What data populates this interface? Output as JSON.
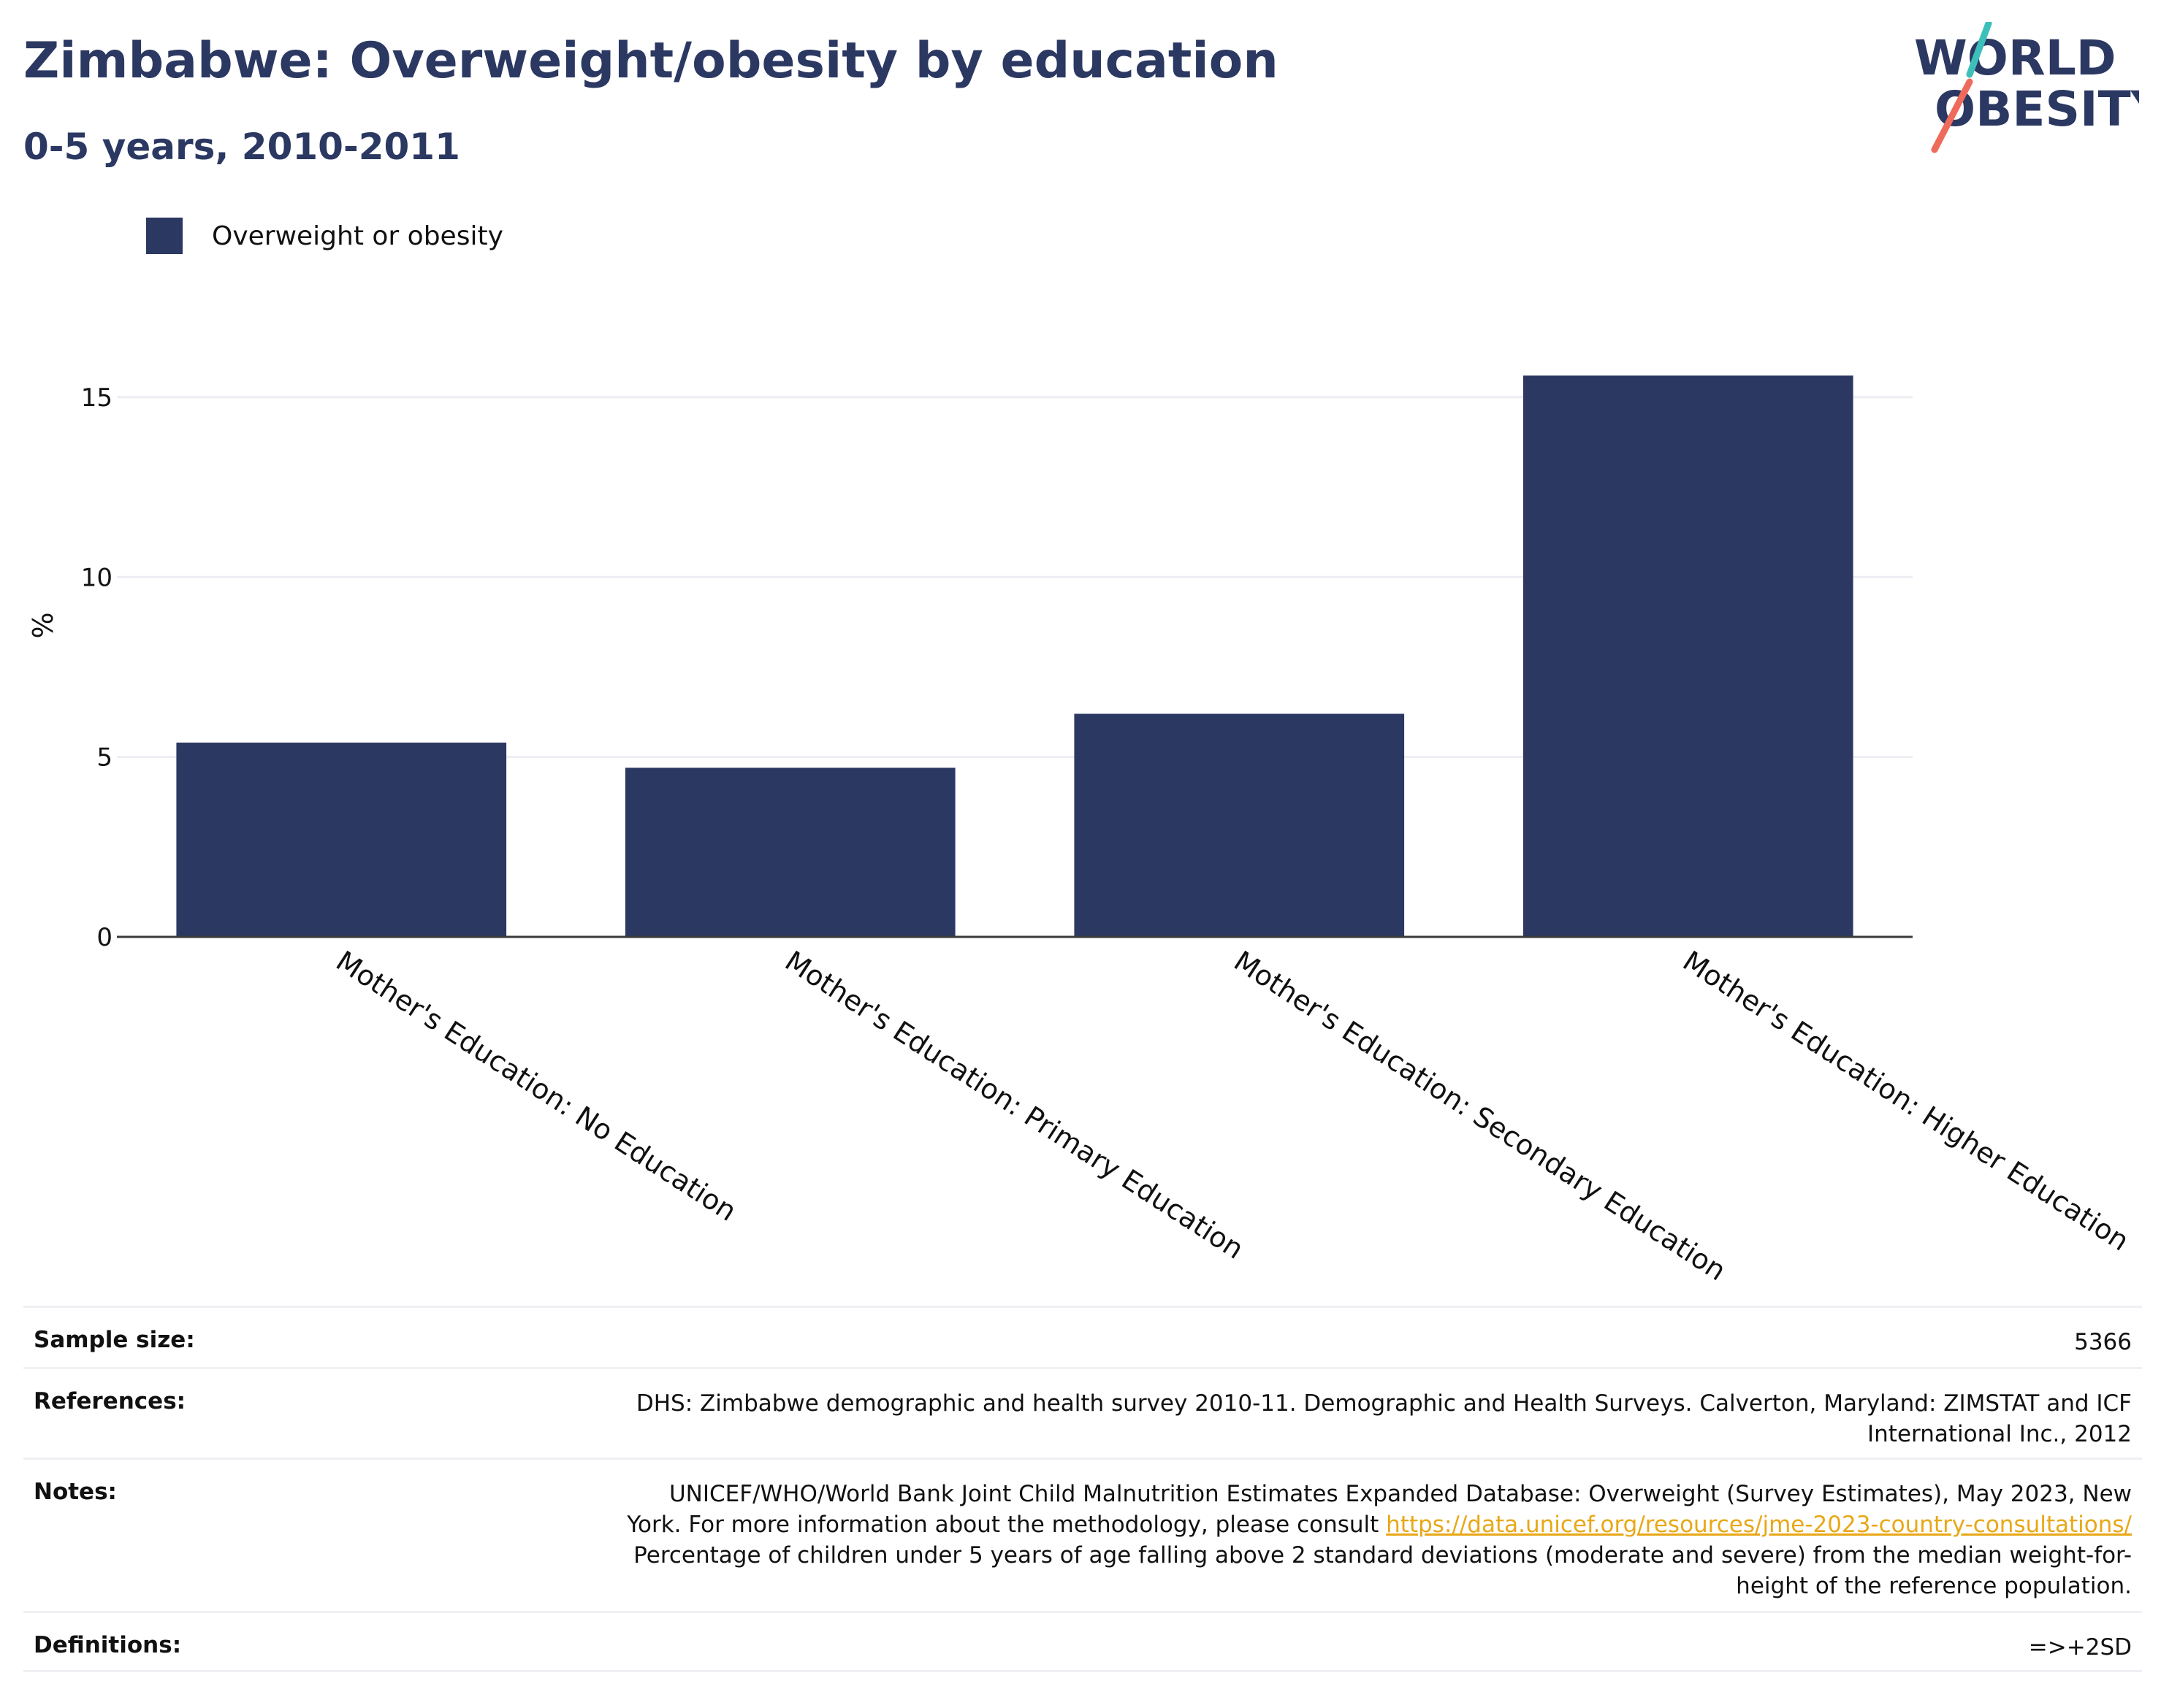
{
  "header": {
    "title": "Zimbabwe: Overweight/obesity by education",
    "subtitle": "0-5 years, 2010-2011"
  },
  "logo": {
    "line1": "WORLD",
    "line2": "OBESITY",
    "colors": {
      "text": "#2b3862",
      "slash_top": "#3cc0b9",
      "slash_bottom": "#ee6b5b"
    }
  },
  "legend": {
    "label": "Overweight or obesity"
  },
  "chart_data": {
    "type": "bar",
    "categories": [
      "Mother's Education: No Education",
      "Mother's Education: Primary Education",
      "Mother's Education: Secondary Education",
      "Mother's Education: Higher Education"
    ],
    "series": [
      {
        "name": "Overweight or obesity",
        "values": [
          5.4,
          4.7,
          6.2,
          15.6
        ],
        "color": "#2b3862"
      }
    ],
    "title": "",
    "xlabel": "",
    "ylabel": "%",
    "ylim": [
      0,
      16.5
    ],
    "yticks": [
      0,
      5,
      10,
      15
    ],
    "ytick_labels": [
      "0",
      "5",
      "10",
      "15"
    ],
    "grid": true,
    "legend_position": "top-left"
  },
  "meta": {
    "sample_size": {
      "label": "Sample size:",
      "value": "5366"
    },
    "references": {
      "label": "References:",
      "lines": [
        "DHS: Zimbabwe demographic and health survey 2010-11. Demographic and Health Surveys. Calverton, Maryland: ZIMSTAT and ICF",
        "International Inc., 2012"
      ]
    },
    "notes": {
      "label": "Notes:",
      "line1": "UNICEF/WHO/World Bank Joint Child Malnutrition Estimates Expanded Database: Overweight (Survey Estimates), May 2023, New",
      "line2_text": "York. For more information about the methodology, please consult ",
      "link": "https://data.unicef.org/resources/jme-2023-country-consultations/",
      "line3": "Percentage of children under 5 years of age falling above 2 standard deviations (moderate and severe) from the median weight-for-",
      "line4": "height of the reference population."
    },
    "definitions": {
      "label": "Definitions:",
      "value": "=>+2SD"
    }
  }
}
